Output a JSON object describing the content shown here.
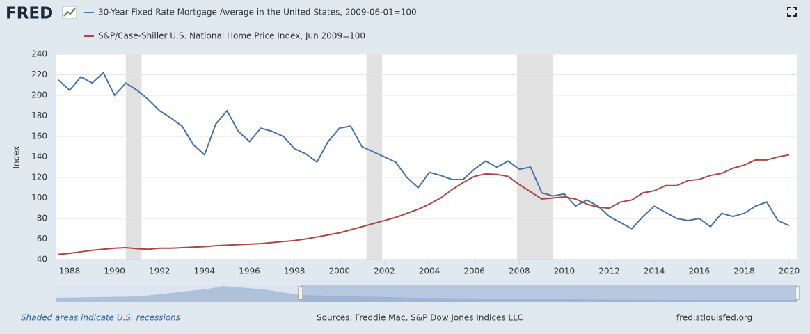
{
  "header": {
    "logo": "FRED"
  },
  "chart_data": {
    "type": "line",
    "y_label": "Index",
    "x": [
      1987.5,
      1988,
      1988.5,
      1989,
      1989.5,
      1990,
      1990.5,
      1991,
      1991.5,
      1992,
      1992.5,
      1993,
      1993.5,
      1994,
      1994.5,
      1995,
      1995.5,
      1996,
      1996.5,
      1997,
      1997.5,
      1998,
      1998.5,
      1999,
      1999.5,
      2000,
      2000.5,
      2001,
      2001.5,
      2002,
      2002.5,
      2003,
      2003.5,
      2004,
      2004.5,
      2005,
      2005.5,
      2006,
      2006.5,
      2007,
      2007.5,
      2008,
      2008.5,
      2009,
      2009.5,
      2010,
      2010.5,
      2011,
      2011.5,
      2012,
      2012.5,
      2013,
      2013.5,
      2014,
      2014.5,
      2015,
      2015.5,
      2016,
      2016.5,
      2017,
      2017.5,
      2018,
      2018.5,
      2019,
      2019.5,
      2020
    ],
    "series": [
      {
        "name": "30-Year Fixed Rate Mortgage Average in the United States, 2009-06-01=100",
        "color": "#4572a7",
        "values": [
          215,
          205,
          218,
          212,
          222,
          200,
          212,
          205,
          196,
          185,
          178,
          170,
          152,
          142,
          172,
          185,
          165,
          155,
          168,
          165,
          160,
          148,
          143,
          135,
          155,
          168,
          170,
          150,
          145,
          140,
          135,
          120,
          110,
          125,
          122,
          118,
          118,
          128,
          136,
          130,
          136,
          128,
          130,
          105,
          102,
          104,
          92,
          98,
          92,
          82,
          76,
          70,
          82,
          92,
          86,
          80,
          78,
          80,
          72,
          85,
          82,
          85,
          92,
          96,
          78,
          73
        ]
      },
      {
        "name": "S&P/Case-Shiller U.S. National Home Price Index, Jun 2009=100",
        "color": "#aa4643",
        "values": [
          45,
          46,
          47.5,
          49,
          50,
          51,
          51.5,
          50.5,
          50,
          51,
          51,
          51.5,
          52,
          52.5,
          53.5,
          54,
          54.5,
          55,
          55.5,
          56.5,
          57.5,
          58.5,
          60,
          62,
          64,
          66,
          69,
          72,
          75,
          78,
          81,
          85,
          89,
          94,
          100,
          108,
          115,
          121,
          123.5,
          123,
          121,
          113,
          106,
          99,
          100,
          101,
          99,
          94,
          91,
          90,
          96,
          98,
          105,
          107,
          112,
          112,
          117,
          118,
          122,
          124,
          129,
          132,
          137,
          137,
          140,
          142
        ]
      }
    ],
    "recessions": [
      [
        1990.5,
        1991.2
      ],
      [
        2001.2,
        2001.9
      ],
      [
        2007.9,
        2009.5
      ]
    ],
    "recession_color": "#e1e1e1",
    "xlim": [
      1987.38,
      2020.37
    ],
    "xticks": [
      1988,
      1990,
      1992,
      1994,
      1996,
      1998,
      2000,
      2002,
      2004,
      2006,
      2008,
      2010,
      2012,
      2014,
      2016,
      2018,
      2020
    ],
    "ylim": [
      40,
      240
    ],
    "yticks": [
      40,
      60,
      80,
      100,
      120,
      140,
      160,
      180,
      200,
      220,
      240
    ],
    "grid": true
  },
  "footer": {
    "recession_note": "Shaded areas indicate U.S. recessions",
    "source": "Sources: Freddie Mac, S&P Dow Jones Indices LLC",
    "url": "fred.stlouisfed.org"
  }
}
